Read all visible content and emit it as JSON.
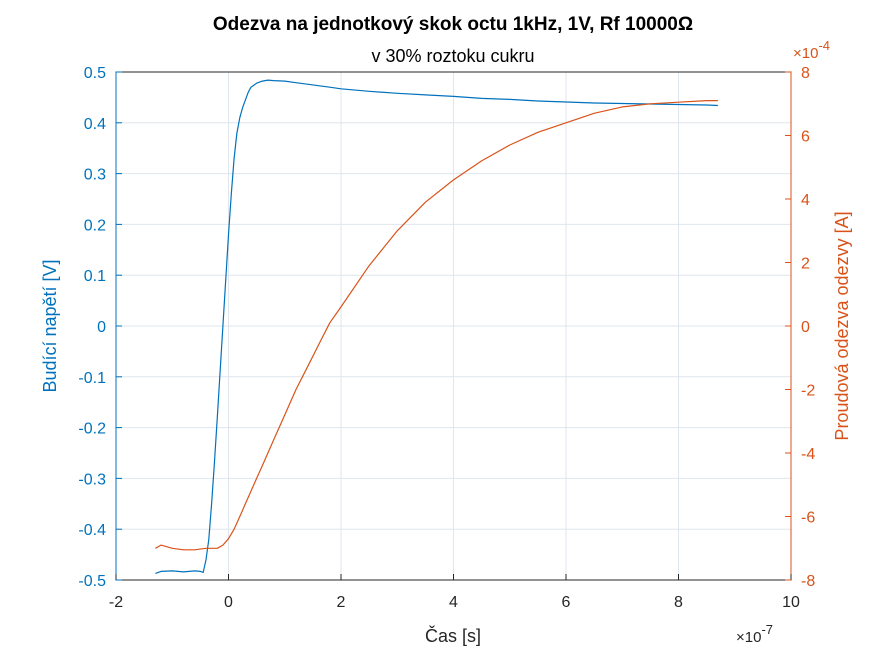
{
  "chart_data": {
    "type": "line",
    "title": "Odezva na jednotkový skok octu 1kHz, 1V, Rf 10000Ω",
    "subtitle": "v 30% roztoku cukru",
    "xlabel": "Čas [s]",
    "x_exponent_label": "×10^-7",
    "x_exponent_base": "×10",
    "x_exponent_power": "-7",
    "ylabel_left": "Budící napětí [V]",
    "ylabel_right": "Proudová odezva odezvy [A]",
    "y_right_exponent_label": "×10^-4",
    "y_right_exponent_base": "×10",
    "y_right_exponent_power": "-4",
    "xlim": [
      -2,
      10
    ],
    "xticks": [
      "-2",
      "0",
      "2",
      "4",
      "6",
      "8",
      "10"
    ],
    "ylim_left": [
      -0.5,
      0.5
    ],
    "yticks_left": [
      "-0.5",
      "-0.4",
      "-0.3",
      "-0.2",
      "-0.1",
      "0",
      "0.1",
      "0.2",
      "0.3",
      "0.4",
      "0.5"
    ],
    "ylim_right": [
      -8,
      8
    ],
    "yticks_right": [
      "-8",
      "-6",
      "-4",
      "-2",
      "0",
      "2",
      "4",
      "6",
      "8"
    ],
    "grid": true,
    "series": [
      {
        "axis": "left",
        "color": "#0072BD",
        "x": [
          -1.3,
          -1.2,
          -1.0,
          -0.8,
          -0.6,
          -0.5,
          -0.45,
          -0.4,
          -0.35,
          -0.3,
          -0.25,
          -0.2,
          -0.15,
          -0.1,
          -0.05,
          0.0,
          0.05,
          0.1,
          0.15,
          0.2,
          0.25,
          0.3,
          0.35,
          0.4,
          0.5,
          0.6,
          0.7,
          0.8,
          1.0,
          1.2,
          1.4,
          1.6,
          1.8,
          2.0,
          2.5,
          3.0,
          3.5,
          4.0,
          4.5,
          5.0,
          5.5,
          6.0,
          6.5,
          7.0,
          7.5,
          8.0,
          8.5,
          8.7
        ],
        "y": [
          -0.487,
          -0.483,
          -0.482,
          -0.484,
          -0.482,
          -0.483,
          -0.485,
          -0.46,
          -0.42,
          -0.35,
          -0.27,
          -0.18,
          -0.09,
          0.0,
          0.09,
          0.18,
          0.26,
          0.33,
          0.38,
          0.41,
          0.43,
          0.445,
          0.46,
          0.47,
          0.478,
          0.482,
          0.484,
          0.483,
          0.482,
          0.479,
          0.476,
          0.473,
          0.47,
          0.467,
          0.462,
          0.458,
          0.455,
          0.452,
          0.448,
          0.446,
          0.443,
          0.441,
          0.439,
          0.438,
          0.437,
          0.436,
          0.435,
          0.434
        ]
      },
      {
        "axis": "right",
        "color": "#D95319",
        "x": [
          -1.3,
          -1.2,
          -1.0,
          -0.8,
          -0.6,
          -0.4,
          -0.2,
          -0.1,
          0.0,
          0.1,
          0.2,
          0.3,
          0.4,
          0.5,
          0.6,
          0.8,
          1.0,
          1.2,
          1.4,
          1.6,
          1.8,
          2.0,
          2.5,
          3.0,
          3.5,
          4.0,
          4.5,
          5.0,
          5.5,
          6.0,
          6.5,
          7.0,
          7.5,
          8.0,
          8.5,
          8.7
        ],
        "y": [
          -7.0,
          -6.9,
          -7.0,
          -7.05,
          -7.05,
          -7.0,
          -7.0,
          -6.9,
          -6.7,
          -6.4,
          -6.0,
          -5.6,
          -5.2,
          -4.8,
          -4.4,
          -3.6,
          -2.8,
          -2.0,
          -1.3,
          -0.6,
          0.1,
          0.6,
          1.9,
          3.0,
          3.9,
          4.6,
          5.2,
          5.7,
          6.1,
          6.4,
          6.7,
          6.9,
          7.0,
          7.05,
          7.1,
          7.1
        ]
      }
    ]
  }
}
